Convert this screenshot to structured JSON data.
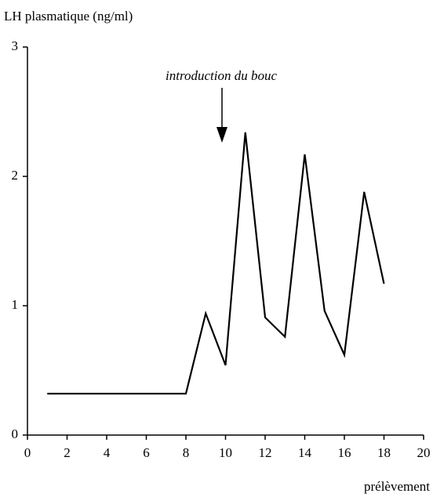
{
  "chart_data": {
    "type": "line",
    "y_label": "LH plasmatique (ng/ml)",
    "x_label": "prélèvement",
    "annotation": "introduction du bouc",
    "x": [
      1,
      8,
      9,
      10,
      11,
      12,
      13,
      14,
      15,
      16,
      17,
      18
    ],
    "series": [
      {
        "color": "#000000",
        "values": [
          0.32,
          0.32,
          0.94,
          0.54,
          2.34,
          0.91,
          0.76,
          2.17,
          0.96,
          0.62,
          1.88,
          1.17
        ]
      }
    ],
    "xlim": [
      0,
      20
    ],
    "xticks": [
      0,
      2,
      4,
      6,
      8,
      10,
      12,
      14,
      16,
      18,
      20
    ],
    "ylim": [
      0,
      3
    ],
    "yticks": [
      0,
      1,
      2,
      3
    ],
    "grid": false
  }
}
